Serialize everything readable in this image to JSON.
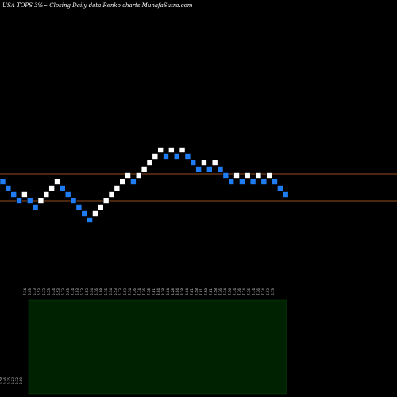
{
  "title": "USA TOPS 3%~ Closing Daily data Renko charts MunafaSutra.com",
  "chart_data": {
    "type": "renko",
    "title": "USA TOPS 3%~ Closing Daily data Renko charts MunafaSutra.com",
    "bricks": [
      {
        "dir": "down",
        "price": 7.14
      },
      {
        "dir": "down",
        "price": 6.93
      },
      {
        "dir": "down",
        "price": 6.73
      },
      {
        "dir": "down",
        "price": 6.53
      },
      {
        "dir": "up",
        "price": 6.73
      },
      {
        "dir": "down",
        "price": 6.53
      },
      {
        "dir": "down",
        "price": 6.34
      },
      {
        "dir": "up",
        "price": 6.53
      },
      {
        "dir": "up",
        "price": 6.73
      },
      {
        "dir": "up",
        "price": 6.93
      },
      {
        "dir": "up",
        "price": 7.14
      },
      {
        "dir": "down",
        "price": 6.93
      },
      {
        "dir": "down",
        "price": 6.73
      },
      {
        "dir": "down",
        "price": 6.53
      },
      {
        "dir": "down",
        "price": 6.34
      },
      {
        "dir": "down",
        "price": 6.16
      },
      {
        "dir": "down",
        "price": 5.98
      },
      {
        "dir": "up",
        "price": 6.16
      },
      {
        "dir": "up",
        "price": 6.34
      },
      {
        "dir": "up",
        "price": 6.53
      },
      {
        "dir": "up",
        "price": 6.73
      },
      {
        "dir": "up",
        "price": 6.93
      },
      {
        "dir": "up",
        "price": 7.14
      },
      {
        "dir": "up",
        "price": 7.36
      },
      {
        "dir": "down",
        "price": 7.14
      },
      {
        "dir": "up",
        "price": 7.36
      },
      {
        "dir": "up",
        "price": 7.58
      },
      {
        "dir": "up",
        "price": 7.81
      },
      {
        "dir": "up",
        "price": 8.04
      },
      {
        "dir": "up",
        "price": 8.28
      },
      {
        "dir": "down",
        "price": 8.04
      },
      {
        "dir": "up",
        "price": 8.28
      },
      {
        "dir": "down",
        "price": 8.04
      },
      {
        "dir": "up",
        "price": 8.28
      },
      {
        "dir": "down",
        "price": 8.04
      },
      {
        "dir": "down",
        "price": 7.81
      },
      {
        "dir": "down",
        "price": 7.58
      },
      {
        "dir": "up",
        "price": 7.81
      },
      {
        "dir": "down",
        "price": 7.58
      },
      {
        "dir": "up",
        "price": 7.81
      },
      {
        "dir": "down",
        "price": 7.58
      },
      {
        "dir": "down",
        "price": 7.36
      },
      {
        "dir": "down",
        "price": 7.14
      },
      {
        "dir": "up",
        "price": 7.36
      },
      {
        "dir": "down",
        "price": 7.14
      },
      {
        "dir": "up",
        "price": 7.36
      },
      {
        "dir": "down",
        "price": 7.14
      },
      {
        "dir": "up",
        "price": 7.36
      },
      {
        "dir": "down",
        "price": 7.14
      },
      {
        "dir": "up",
        "price": 7.36
      },
      {
        "dir": "down",
        "price": 7.14
      },
      {
        "dir": "down",
        "price": 6.93
      },
      {
        "dir": "down",
        "price": 6.73
      }
    ],
    "x_tick_labels": [
      "7.14",
      "6.93",
      "6.73",
      "6.53",
      "6.73",
      "6.53",
      "6.34",
      "6.53",
      "6.73",
      "6.93",
      "7.14",
      "6.93",
      "6.73",
      "6.53",
      "6.34",
      "6.16",
      "5.98",
      "6.16",
      "6.34",
      "6.53",
      "6.73",
      "6.93",
      "7.14",
      "7.36",
      "7.14",
      "7.36",
      "7.58",
      "7.81",
      "8.04",
      "8.28",
      "8.04",
      "8.28",
      "8.04",
      "8.28",
      "8.04",
      "7.81",
      "7.58",
      "7.81",
      "7.58",
      "7.81",
      "7.58",
      "7.36",
      "7.14",
      "7.36",
      "7.14",
      "7.36",
      "7.14",
      "7.36",
      "7.14",
      "7.36",
      "7.14",
      "6.93",
      "6.73"
    ],
    "horizontal_lines": [
      7.36,
      6.53
    ],
    "volume_axis_labels": [
      "0.58",
      "0.46",
      "0.35",
      "0.23",
      "0.12",
      "0.00"
    ],
    "colors": {
      "background": "#000000",
      "up_brick": "#ffffff",
      "down_brick": "#1f7cf2",
      "horizontal_line": "#c8692a",
      "volume_panel": "#002200"
    }
  }
}
